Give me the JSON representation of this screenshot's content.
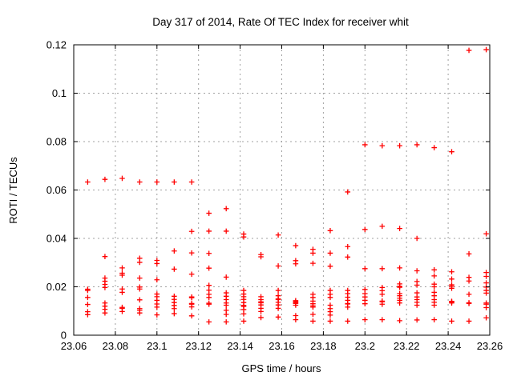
{
  "window": {
    "background": "#ffffff"
  },
  "chart_data": {
    "type": "scatter",
    "title": "Day 317 of 2014, Rate Of TEC Index for receiver whit",
    "xlabel": "GPS time / hours",
    "ylabel": "ROTI / TECUs",
    "xlim": [
      23.06,
      23.26
    ],
    "ylim": [
      0,
      0.12
    ],
    "xticks": [
      23.06,
      23.08,
      23.1,
      23.12,
      23.14,
      23.16,
      23.18,
      23.2,
      23.22,
      23.24,
      23.26
    ],
    "xtick_labels": [
      "23.06",
      "23.08",
      "23.1",
      "23.12",
      "23.14",
      "23.16",
      "23.18",
      "23.2",
      "23.22",
      "23.24",
      "23.26"
    ],
    "yticks": [
      0,
      0.02,
      0.04,
      0.06,
      0.08,
      0.1,
      0.12
    ],
    "ytick_labels": [
      "0",
      "0.02",
      "0.04",
      "0.06",
      "0.08",
      "0.1",
      "0.12"
    ],
    "grid": true,
    "grid_style": "dashed",
    "legend": "none",
    "marker": "plus",
    "colors": {
      "marker": "#ff0000",
      "grid": "#a0a0a0",
      "axis": "#000000",
      "text": "#000000",
      "background": "#ffffff"
    },
    "series_name": "ROTI (30 s samples, all satellites)",
    "columns": [
      {
        "t": 23.0667,
        "v": [
          0.0633,
          0.019,
          0.0185,
          0.0156,
          0.0127,
          0.0097,
          0.0085
        ]
      },
      {
        "t": 23.075,
        "v": [
          0.0644,
          0.0325,
          0.0236,
          0.0223,
          0.021,
          0.0197,
          0.0133,
          0.012,
          0.0107,
          0.0092
        ]
      },
      {
        "t": 23.0833,
        "v": [
          0.0648,
          0.0278,
          0.0256,
          0.0248,
          0.0191,
          0.0177,
          0.0115,
          0.0111,
          0.0098
        ]
      },
      {
        "t": 23.0917,
        "v": [
          0.0633,
          0.0318,
          0.0301,
          0.0236,
          0.0199,
          0.0191,
          0.0146,
          0.011,
          0.0103,
          0.0092
        ]
      },
      {
        "t": 23.1,
        "v": [
          0.0633,
          0.0309,
          0.0296,
          0.0229,
          0.017,
          0.0159,
          0.0144,
          0.0129,
          0.0116,
          0.0084
        ]
      },
      {
        "t": 23.1083,
        "v": [
          0.0633,
          0.0348,
          0.0273,
          0.0161,
          0.0148,
          0.0135,
          0.0123,
          0.011,
          0.0089
        ]
      },
      {
        "t": 23.1167,
        "v": [
          0.0633,
          0.0429,
          0.034,
          0.0252,
          0.0158,
          0.0155,
          0.0131,
          0.0128,
          0.0117,
          0.008
        ]
      },
      {
        "t": 23.125,
        "v": [
          0.0504,
          0.043,
          0.0338,
          0.0277,
          0.0206,
          0.0186,
          0.0169,
          0.0156,
          0.0132,
          0.0128,
          0.0055
        ]
      },
      {
        "t": 23.1333,
        "v": [
          0.0523,
          0.043,
          0.024,
          0.0175,
          0.0161,
          0.0147,
          0.0133,
          0.0124,
          0.0103,
          0.0086,
          0.0055
        ]
      },
      {
        "t": 23.1417,
        "v": [
          0.0418,
          0.0406,
          0.0185,
          0.017,
          0.0159,
          0.0148,
          0.0135,
          0.0123,
          0.0119,
          0.0106,
          0.0088,
          0.0058
        ]
      },
      {
        "t": 23.15,
        "v": [
          0.0333,
          0.0324,
          0.0159,
          0.0147,
          0.0138,
          0.0134,
          0.0125,
          0.0111,
          0.0098,
          0.0073
        ]
      },
      {
        "t": 23.1583,
        "v": [
          0.0414,
          0.0286,
          0.0185,
          0.0163,
          0.015,
          0.0147,
          0.0136,
          0.0125,
          0.0111,
          0.0075
        ]
      },
      {
        "t": 23.1667,
        "v": [
          0.037,
          0.0308,
          0.0295,
          0.0143,
          0.0139,
          0.0135,
          0.0131,
          0.0124,
          0.0081,
          0.0064
        ]
      },
      {
        "t": 23.175,
        "v": [
          0.0355,
          0.0339,
          0.0297,
          0.0169,
          0.0156,
          0.0141,
          0.013,
          0.0121,
          0.0116,
          0.0086,
          0.0058
        ]
      },
      {
        "t": 23.1833,
        "v": [
          0.0432,
          0.0339,
          0.0285,
          0.0185,
          0.0169,
          0.0156,
          0.0124,
          0.011,
          0.0097,
          0.0083,
          0.0058
        ]
      },
      {
        "t": 23.1917,
        "v": [
          0.0592,
          0.0366,
          0.0323,
          0.0185,
          0.0172,
          0.0157,
          0.0144,
          0.0131,
          0.0129,
          0.0116,
          0.0058
        ]
      },
      {
        "t": 23.2,
        "v": [
          0.0787,
          0.0437,
          0.0275,
          0.0189,
          0.0172,
          0.0158,
          0.0144,
          0.013,
          0.0064
        ]
      },
      {
        "t": 23.2083,
        "v": [
          0.0783,
          0.045,
          0.0275,
          0.0197,
          0.0184,
          0.0169,
          0.0141,
          0.0138,
          0.0128,
          0.0064
        ]
      },
      {
        "t": 23.2167,
        "v": [
          0.0783,
          0.0441,
          0.0278,
          0.0212,
          0.0202,
          0.0198,
          0.0172,
          0.0163,
          0.0153,
          0.0144,
          0.0133,
          0.006
        ]
      },
      {
        "t": 23.225,
        "v": [
          0.0787,
          0.04,
          0.0266,
          0.0222,
          0.0207,
          0.0175,
          0.0158,
          0.0147,
          0.0136,
          0.0124,
          0.0063
        ]
      },
      {
        "t": 23.2333,
        "v": [
          0.0775,
          0.027,
          0.0245,
          0.0211,
          0.02,
          0.0177,
          0.0163,
          0.0147,
          0.0136,
          0.0124,
          0.0064
        ]
      },
      {
        "t": 23.2417,
        "v": [
          0.0758,
          0.0262,
          0.0232,
          0.0208,
          0.0202,
          0.0194,
          0.014,
          0.0137,
          0.0133,
          0.0058
        ]
      },
      {
        "t": 23.25,
        "v": [
          0.1177,
          0.0336,
          0.0239,
          0.0224,
          0.0169,
          0.0134,
          0.0131,
          0.0058
        ]
      },
      {
        "t": 23.2583,
        "v": [
          0.118,
          0.0419,
          0.0259,
          0.0243,
          0.0216,
          0.0199,
          0.0185,
          0.0174,
          0.0133,
          0.0128,
          0.0114,
          0.0072
        ]
      }
    ]
  }
}
